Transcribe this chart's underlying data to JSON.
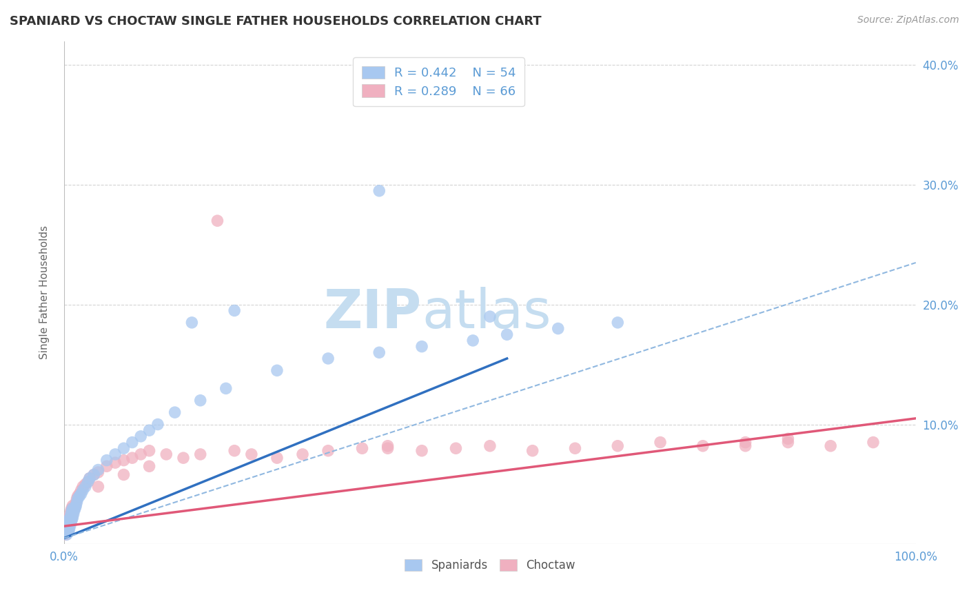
{
  "title": "SPANIARD VS CHOCTAW SINGLE FATHER HOUSEHOLDS CORRELATION CHART",
  "source_text": "Source: ZipAtlas.com",
  "ylabel": "Single Father Households",
  "xlim": [
    0,
    1.0
  ],
  "ylim": [
    0,
    0.42
  ],
  "legend_r1": "R = 0.442",
  "legend_n1": "N = 54",
  "legend_r2": "R = 0.289",
  "legend_n2": "N = 66",
  "background_color": "#ffffff",
  "grid_color": "#c8c8c8",
  "title_color": "#333333",
  "axis_label_color": "#5b9bd5",
  "watermark_zip_color": "#c5ddf0",
  "watermark_atlas_color": "#c5ddf0",
  "spaniard_color": "#a8c8f0",
  "choctaw_color": "#f0b0c0",
  "spaniard_line_color": "#3070c0",
  "choctaw_line_color": "#e05878",
  "spaniard_dash_color": "#90b8e0",
  "spaniard_x": [
    0.002,
    0.003,
    0.003,
    0.004,
    0.004,
    0.005,
    0.005,
    0.005,
    0.006,
    0.006,
    0.007,
    0.007,
    0.008,
    0.008,
    0.009,
    0.009,
    0.01,
    0.01,
    0.011,
    0.012,
    0.013,
    0.014,
    0.015,
    0.016,
    0.018,
    0.02,
    0.022,
    0.025,
    0.028,
    0.03,
    0.035,
    0.04,
    0.05,
    0.06,
    0.07,
    0.08,
    0.09,
    0.1,
    0.11,
    0.13,
    0.16,
    0.19,
    0.25,
    0.31,
    0.37,
    0.42,
    0.48,
    0.52,
    0.58,
    0.65,
    0.15,
    0.2,
    0.37,
    0.5
  ],
  "spaniard_y": [
    0.01,
    0.015,
    0.008,
    0.012,
    0.018,
    0.01,
    0.015,
    0.02,
    0.012,
    0.018,
    0.015,
    0.022,
    0.018,
    0.025,
    0.02,
    0.028,
    0.022,
    0.03,
    0.025,
    0.028,
    0.03,
    0.032,
    0.035,
    0.038,
    0.04,
    0.042,
    0.045,
    0.048,
    0.052,
    0.055,
    0.058,
    0.062,
    0.07,
    0.075,
    0.08,
    0.085,
    0.09,
    0.095,
    0.1,
    0.11,
    0.12,
    0.13,
    0.145,
    0.155,
    0.16,
    0.165,
    0.17,
    0.175,
    0.18,
    0.185,
    0.185,
    0.195,
    0.295,
    0.19
  ],
  "choctaw_x": [
    0.002,
    0.003,
    0.003,
    0.004,
    0.004,
    0.005,
    0.005,
    0.006,
    0.006,
    0.007,
    0.007,
    0.008,
    0.008,
    0.009,
    0.009,
    0.01,
    0.01,
    0.011,
    0.012,
    0.013,
    0.014,
    0.015,
    0.016,
    0.018,
    0.02,
    0.022,
    0.025,
    0.028,
    0.03,
    0.035,
    0.04,
    0.05,
    0.06,
    0.07,
    0.08,
    0.09,
    0.1,
    0.12,
    0.14,
    0.16,
    0.18,
    0.2,
    0.22,
    0.25,
    0.28,
    0.31,
    0.35,
    0.38,
    0.42,
    0.46,
    0.5,
    0.55,
    0.6,
    0.65,
    0.7,
    0.75,
    0.8,
    0.85,
    0.9,
    0.95,
    0.04,
    0.07,
    0.1,
    0.38,
    0.8,
    0.85
  ],
  "choctaw_y": [
    0.008,
    0.012,
    0.018,
    0.01,
    0.015,
    0.012,
    0.02,
    0.015,
    0.022,
    0.018,
    0.025,
    0.02,
    0.028,
    0.022,
    0.03,
    0.025,
    0.032,
    0.028,
    0.03,
    0.032,
    0.035,
    0.038,
    0.04,
    0.042,
    0.045,
    0.048,
    0.05,
    0.052,
    0.055,
    0.058,
    0.06,
    0.065,
    0.068,
    0.07,
    0.072,
    0.075,
    0.078,
    0.075,
    0.072,
    0.075,
    0.27,
    0.078,
    0.075,
    0.072,
    0.075,
    0.078,
    0.08,
    0.082,
    0.078,
    0.08,
    0.082,
    0.078,
    0.08,
    0.082,
    0.085,
    0.082,
    0.082,
    0.085,
    0.082,
    0.085,
    0.048,
    0.058,
    0.065,
    0.08,
    0.085,
    0.088
  ],
  "sp_trend_x0": 0.0,
  "sp_trend_x1": 0.52,
  "sp_trend_y0": 0.005,
  "sp_trend_y1": 0.155,
  "sp_dash_trend_x0": 0.0,
  "sp_dash_trend_x1": 1.0,
  "sp_dash_trend_y0": 0.005,
  "sp_dash_trend_y1": 0.235,
  "ch_trend_x0": 0.0,
  "ch_trend_x1": 1.0,
  "ch_trend_y0": 0.015,
  "ch_trend_y1": 0.105
}
